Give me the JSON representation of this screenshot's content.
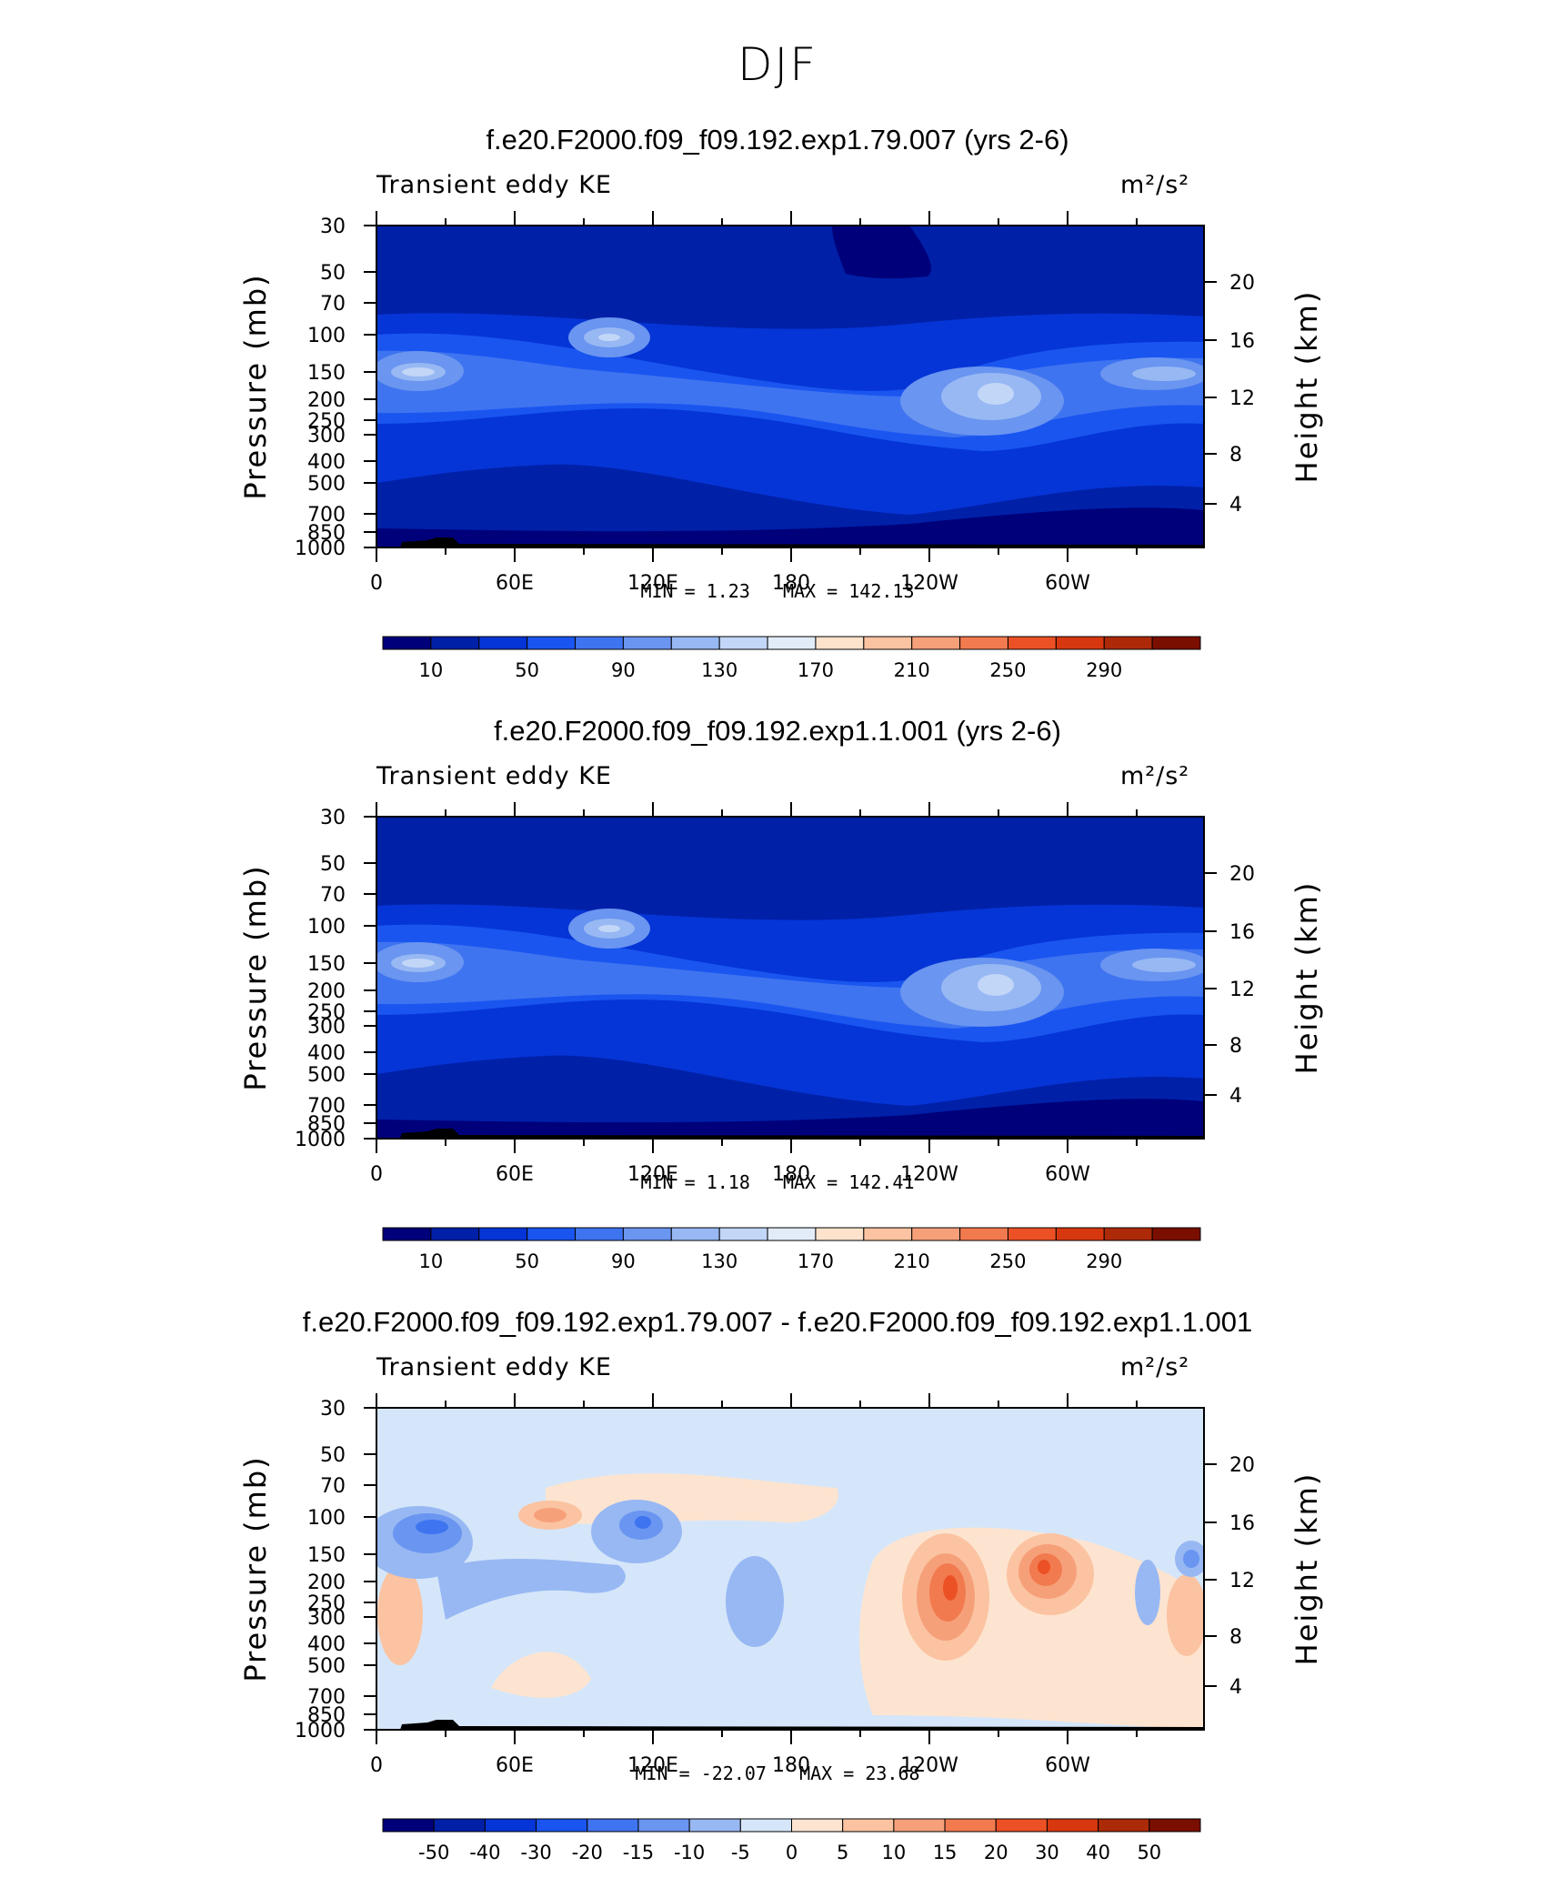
{
  "title": "DJF",
  "chart_data": [
    {
      "type": "heatmap",
      "title": "f.e20.F2000.f09_f09.192.exp1.79.007 (yrs 2-6)",
      "left_label": "Transient eddy KE",
      "units": "m²/s²",
      "ylabel": "Pressure (mb)",
      "ylabel_right": "Height (km)",
      "x_ticks": [
        "0",
        "60E",
        "120E",
        "180",
        "120W",
        "60W"
      ],
      "y_ticks": [
        "30",
        "50",
        "70",
        "100",
        "150",
        "200",
        "250",
        "300",
        "400",
        "500",
        "700",
        "850",
        "1000"
      ],
      "y_ticks_right": [
        "20",
        "16",
        "12",
        "8",
        "4"
      ],
      "min_label": "MIN = ",
      "min": "1.23",
      "max_label": "MAX = ",
      "max": "142.13",
      "colorbar_labels": [
        "10",
        "50",
        "90",
        "130",
        "170",
        "210",
        "250",
        "290"
      ]
    },
    {
      "type": "heatmap",
      "title": "f.e20.F2000.f09_f09.192.exp1.1.001 (yrs 2-6)",
      "left_label": "Transient eddy KE",
      "units": "m²/s²",
      "ylabel": "Pressure (mb)",
      "ylabel_right": "Height (km)",
      "x_ticks": [
        "0",
        "60E",
        "120E",
        "180",
        "120W",
        "60W"
      ],
      "y_ticks": [
        "30",
        "50",
        "70",
        "100",
        "150",
        "200",
        "250",
        "300",
        "400",
        "500",
        "700",
        "850",
        "1000"
      ],
      "y_ticks_right": [
        "20",
        "16",
        "12",
        "8",
        "4"
      ],
      "min_label": "MIN = ",
      "min": "1.18",
      "max_label": "MAX = ",
      "max": "142.41",
      "colorbar_labels": [
        "10",
        "50",
        "90",
        "130",
        "170",
        "210",
        "250",
        "290"
      ]
    },
    {
      "type": "heatmap",
      "title": "f.e20.F2000.f09_f09.192.exp1.79.007 - f.e20.F2000.f09_f09.192.exp1.1.001",
      "left_label": "Transient eddy KE",
      "units": "m²/s²",
      "ylabel": "Pressure (mb)",
      "ylabel_right": "Height (km)",
      "x_ticks": [
        "0",
        "60E",
        "120E",
        "180",
        "120W",
        "60W"
      ],
      "y_ticks": [
        "30",
        "50",
        "70",
        "100",
        "150",
        "200",
        "250",
        "300",
        "400",
        "500",
        "700",
        "850",
        "1000"
      ],
      "y_ticks_right": [
        "20",
        "16",
        "12",
        "8",
        "4"
      ],
      "min_label": "MIN = ",
      "min": "-22.07",
      "max_label": "MAX = ",
      "max": "23.68",
      "colorbar_labels": [
        "-50",
        "-40",
        "-30",
        "-20",
        "-15",
        "-10",
        "-5",
        "0",
        "5",
        "10",
        "15",
        "20",
        "30",
        "40",
        "50"
      ]
    }
  ],
  "colors": {
    "colorbar_seq": [
      "#00007a",
      "#0020a8",
      "#0535d6",
      "#1a55f0",
      "#3f74f0",
      "#6a95f0",
      "#97b8f3",
      "#c2d6f7",
      "#e2ecf9",
      "#fde2cc",
      "#fbc3a1",
      "#f6a07a",
      "#f27a4f",
      "#ec5125",
      "#d8380f",
      "#ad2a08",
      "#7a0f00"
    ],
    "colorbar_diff": [
      "#00007a",
      "#0020a8",
      "#0535d6",
      "#1a55f0",
      "#3f74f0",
      "#6a95f0",
      "#97b8f3",
      "#d5e6fa",
      "#fde4d0",
      "#fbc3a1",
      "#f6a07a",
      "#f27a4f",
      "#ec5125",
      "#d8380f",
      "#ad2a08",
      "#7a0f00"
    ]
  }
}
